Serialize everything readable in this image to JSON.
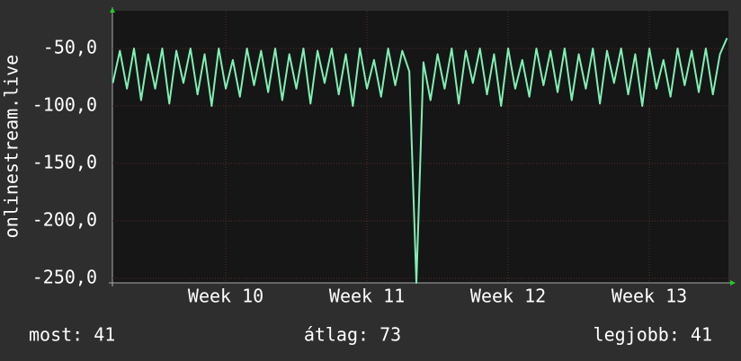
{
  "chart_data": {
    "type": "line",
    "y_label": "onlinestream.live",
    "x": [
      9.2,
      9.25,
      9.3,
      9.35,
      9.4,
      9.45,
      9.5,
      9.55,
      9.6,
      9.65,
      9.7,
      9.75,
      9.8,
      9.85,
      9.9,
      9.95,
      10.0,
      10.05,
      10.1,
      10.15,
      10.2,
      10.25,
      10.3,
      10.35,
      10.4,
      10.45,
      10.5,
      10.55,
      10.6,
      10.65,
      10.7,
      10.75,
      10.8,
      10.85,
      10.9,
      10.95,
      11.0,
      11.05,
      11.1,
      11.15,
      11.2,
      11.25,
      11.3,
      11.35,
      11.4,
      11.45,
      11.5,
      11.55,
      11.6,
      11.65,
      11.7,
      11.75,
      11.8,
      11.85,
      11.9,
      11.95,
      12.0,
      12.05,
      12.1,
      12.15,
      12.2,
      12.25,
      12.3,
      12.35,
      12.4,
      12.45,
      12.5,
      12.55,
      12.6,
      12.65,
      12.7,
      12.75,
      12.8,
      12.85,
      12.9,
      12.95,
      13.0,
      13.05,
      13.1,
      13.15,
      13.2,
      13.25,
      13.3,
      13.35,
      13.4,
      13.45,
      13.5,
      13.55
    ],
    "series": [
      {
        "color": "#7ff0b4",
        "values": [
          -80,
          -52,
          -85,
          -50,
          -95,
          -55,
          -85,
          -50,
          -98,
          -52,
          -80,
          -50,
          -90,
          -55,
          -100,
          -50,
          -85,
          -60,
          -92,
          -50,
          -82,
          -52,
          -88,
          -50,
          -95,
          -55,
          -85,
          -50,
          -98,
          -52,
          -80,
          -50,
          -90,
          -55,
          -100,
          -50,
          -85,
          -60,
          -92,
          -50,
          -82,
          -52,
          -70,
          -254,
          -62,
          -95,
          -55,
          -85,
          -50,
          -98,
          -52,
          -80,
          -50,
          -90,
          -55,
          -100,
          -50,
          -85,
          -60,
          -92,
          -50,
          -82,
          -52,
          -88,
          -50,
          -95,
          -55,
          -85,
          -50,
          -98,
          -52,
          -80,
          -50,
          -90,
          -55,
          -100,
          -50,
          -85,
          -60,
          -92,
          -50,
          -82,
          -52,
          -88,
          -50,
          -90,
          -55,
          -41
        ]
      }
    ],
    "xlim": [
      9.197,
      13.56
    ],
    "xticks": [
      {
        "value": 10,
        "label": "Week 10"
      },
      {
        "value": 11,
        "label": "Week 11"
      },
      {
        "value": 12,
        "label": "Week 12"
      },
      {
        "value": 13,
        "label": "Week 13"
      }
    ],
    "ylim": [
      -254,
      -17.2
    ],
    "yticks": [
      {
        "value": -50,
        "label": "-50,0"
      },
      {
        "value": -100,
        "label": "-100,0"
      },
      {
        "value": -150,
        "label": "-150,0"
      },
      {
        "value": -200,
        "label": "-200,0"
      },
      {
        "value": -250,
        "label": "-250,0"
      }
    ],
    "grid": true,
    "footer": [
      "most: 41",
      "átlag: 73",
      "legjobb: 41"
    ]
  }
}
